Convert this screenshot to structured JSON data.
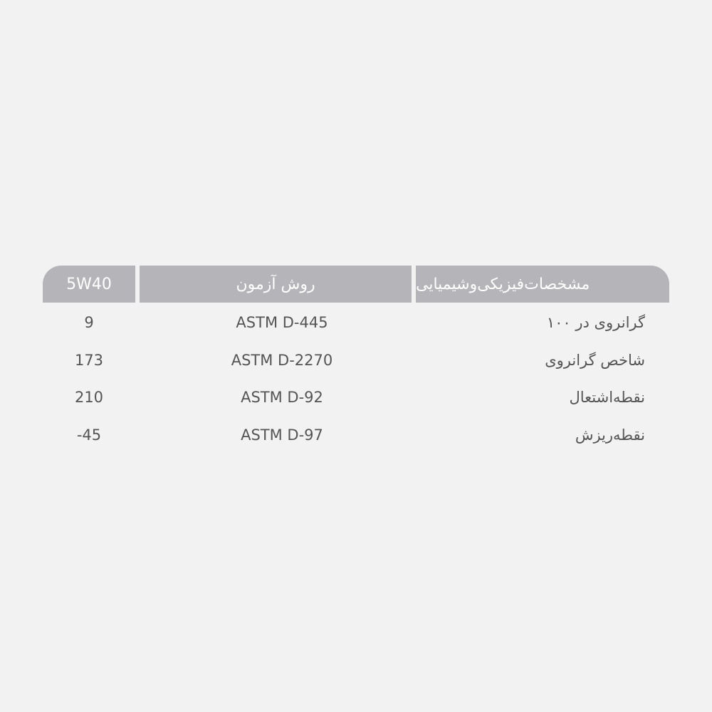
{
  "table": {
    "headers": [
      "مشخصات‌فیزیکی‌وشیمیایی",
      "روش آزمون",
      "5W40"
    ],
    "rows": [
      {
        "property": "گرانروی در ۱۰۰",
        "method": "ASTM D-445",
        "value": "9"
      },
      {
        "property": "شاخص گرانروی",
        "method": "ASTM D-2270",
        "value": "173"
      },
      {
        "property": "نقطه‌اشتعال",
        "method": "ASTM D-92",
        "value": "210"
      },
      {
        "property": "نقطه‌ریزش",
        "method": "ASTM D-97",
        "value": "-45"
      }
    ]
  },
  "colors": {
    "header_bg": "#b5b5b9",
    "header_text": "#ffffff",
    "body_text": "#555555",
    "background": "#f2f2f2"
  }
}
